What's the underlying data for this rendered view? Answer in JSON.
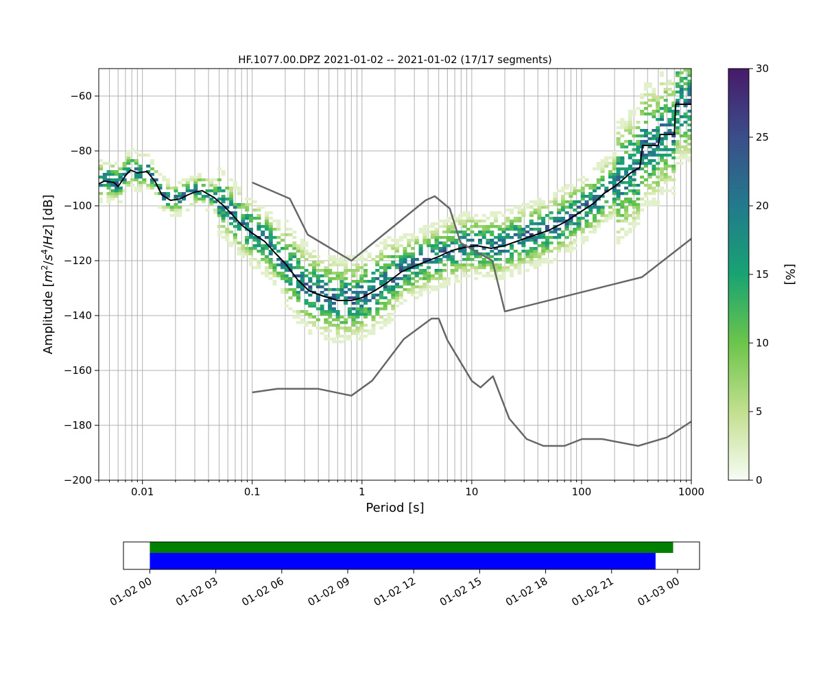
{
  "chart_data": [
    {
      "type": "heatmap",
      "title": "HF.1077.00.DPZ   2021-01-02 -- 2021-01-02  (17/17 segments)",
      "xlabel": "Period [s]",
      "ylabel": "Amplitude [m²/s⁴/Hz] [dB]",
      "x_scale": "log",
      "xlim": [
        0.004,
        1000
      ],
      "ylim": [
        -200,
        -50
      ],
      "x_ticks": [
        {
          "value": 0.01,
          "label": "0.01"
        },
        {
          "value": 0.1,
          "label": "0.1"
        },
        {
          "value": 1,
          "label": "1"
        },
        {
          "value": 10,
          "label": "10"
        },
        {
          "value": 100,
          "label": "100"
        },
        {
          "value": 1000,
          "label": "1000"
        }
      ],
      "y_ticks": [
        {
          "value": -60,
          "label": "−60"
        },
        {
          "value": -80,
          "label": "−80"
        },
        {
          "value": -100,
          "label": "−100"
        },
        {
          "value": -120,
          "label": "−120"
        },
        {
          "value": -140,
          "label": "−140"
        },
        {
          "value": -160,
          "label": "−160"
        },
        {
          "value": -180,
          "label": "−180"
        },
        {
          "value": -200,
          "label": "−200"
        }
      ],
      "grid": true,
      "colorbar": {
        "label": "[%]",
        "range": [
          0,
          30
        ],
        "ticks": [
          {
            "value": 0,
            "label": "0"
          },
          {
            "value": 5,
            "label": "5"
          },
          {
            "value": 10,
            "label": "10"
          },
          {
            "value": 15,
            "label": "15"
          },
          {
            "value": 20,
            "label": "20"
          },
          {
            "value": 25,
            "label": "25"
          },
          {
            "value": 30,
            "label": "30"
          }
        ],
        "colormap": [
          "#f7fcf5",
          "#c2df8f",
          "#6cc54a",
          "#18a373",
          "#227a8c",
          "#3b4e8a",
          "#471a6a"
        ]
      },
      "series": [
        {
          "role": "mean",
          "color": "#000000",
          "points": [
            [
              0.004,
              -92
            ],
            [
              0.0045,
              -91
            ],
            [
              0.0055,
              -91.5
            ],
            [
              0.006,
              -93
            ],
            [
              0.007,
              -89
            ],
            [
              0.0078,
              -87
            ],
            [
              0.009,
              -88
            ],
            [
              0.011,
              -87.5
            ],
            [
              0.013,
              -91
            ],
            [
              0.015,
              -96
            ],
            [
              0.018,
              -98
            ],
            [
              0.022,
              -97.5
            ],
            [
              0.026,
              -96
            ],
            [
              0.03,
              -95
            ],
            [
              0.035,
              -94.5
            ],
            [
              0.045,
              -97
            ],
            [
              0.055,
              -100
            ],
            [
              0.065,
              -103
            ],
            [
              0.08,
              -107
            ],
            [
              0.1,
              -110
            ],
            [
              0.13,
              -113
            ],
            [
              0.16,
              -117
            ],
            [
              0.2,
              -121
            ],
            [
              0.26,
              -127
            ],
            [
              0.33,
              -131
            ],
            [
              0.45,
              -133
            ],
            [
              0.6,
              -134.5
            ],
            [
              0.8,
              -134.5
            ],
            [
              1,
              -133.5
            ],
            [
              1.3,
              -131
            ],
            [
              1.7,
              -128
            ],
            [
              2.3,
              -124
            ],
            [
              3,
              -122
            ],
            [
              4,
              -120
            ],
            [
              5,
              -118.5
            ],
            [
              6,
              -117
            ],
            [
              7,
              -116
            ],
            [
              9,
              -115
            ],
            [
              11,
              -114.5
            ],
            [
              15,
              -115.5
            ],
            [
              20,
              -114.5
            ],
            [
              30,
              -112
            ],
            [
              50,
              -109
            ],
            [
              70,
              -106
            ],
            [
              100,
              -102
            ],
            [
              130,
              -99
            ],
            [
              160,
              -95.5
            ],
            [
              200,
              -93
            ],
            [
              230,
              -91
            ],
            [
              280,
              -88
            ],
            [
              340,
              -86
            ],
            [
              360,
              -78
            ],
            [
              500,
              -78
            ],
            [
              520,
              -74
            ],
            [
              700,
              -74
            ],
            [
              720,
              -63
            ],
            [
              1000,
              -63
            ]
          ]
        },
        {
          "role": "nlnm-model",
          "color": "#666666",
          "points": [
            [
              0.1,
              -168
            ],
            [
              0.17,
              -166.7
            ],
            [
              0.4,
              -166.7
            ],
            [
              0.8,
              -169.2
            ],
            [
              1.24,
              -163.7
            ],
            [
              2.4,
              -148.6
            ],
            [
              4.3,
              -141.1
            ],
            [
              5,
              -141.1
            ],
            [
              6,
              -149
            ],
            [
              10,
              -163.8
            ],
            [
              12,
              -166.2
            ],
            [
              15.6,
              -162.1
            ],
            [
              21.9,
              -177.5
            ],
            [
              31.6,
              -185
            ],
            [
              45,
              -187.5
            ],
            [
              70,
              -187.5
            ],
            [
              101,
              -185
            ],
            [
              154,
              -185
            ],
            [
              328,
              -187.5
            ],
            [
              600,
              -184.4
            ],
            [
              1000,
              -178.6
            ]
          ]
        },
        {
          "role": "nhnm-model",
          "color": "#666666",
          "points": [
            [
              0.1,
              -91.5
            ],
            [
              0.22,
              -97.4
            ],
            [
              0.32,
              -110.5
            ],
            [
              0.8,
              -120
            ],
            [
              3.8,
              -98
            ],
            [
              4.6,
              -96.5
            ],
            [
              6.3,
              -101
            ],
            [
              7.9,
              -113.5
            ],
            [
              15.4,
              -120
            ],
            [
              20,
              -138.5
            ],
            [
              354.8,
              -126
            ],
            [
              1000,
              -112
            ]
          ]
        }
      ],
      "probability_bands": [
        {
          "period_range": [
            0.004,
            0.006
          ],
          "db_range": [
            -97,
            -83
          ],
          "level": "high"
        },
        {
          "period_range": [
            0.006,
            0.012
          ],
          "db_range": [
            -93,
            -80
          ],
          "level": "medium"
        },
        {
          "period_range": [
            0.012,
            0.05
          ],
          "db_range": [
            -102,
            -91
          ],
          "level": "mixed"
        },
        {
          "period_range": [
            0.05,
            0.2
          ],
          "db_range": [
            -122,
            -99
          ],
          "level": "high"
        },
        {
          "period_range": [
            0.2,
            2
          ],
          "db_range": [
            -142,
            -112
          ],
          "level": "mixed"
        },
        {
          "period_range": [
            2,
            20
          ],
          "db_range": [
            -126,
            -103
          ],
          "level": "mixed"
        },
        {
          "period_range": [
            20,
            200
          ],
          "db_range": [
            -113,
            -90
          ],
          "level": "high"
        },
        {
          "period_range": [
            200,
            1000
          ],
          "db_range": [
            -93,
            -50
          ],
          "level": "mixed"
        }
      ]
    },
    {
      "type": "timeline",
      "x_ticks": [
        "01-02 00",
        "01-02 03",
        "01-02 06",
        "01-02 09",
        "01-02 12",
        "01-02 15",
        "01-02 18",
        "01-02 21",
        "01-03 00"
      ],
      "x_range_hours": [
        -1.2,
        25
      ],
      "bars": [
        {
          "role": "data-coverage",
          "color": "#008000",
          "start_hour": 0,
          "end_hour": 23.8
        },
        {
          "role": "processed-segments",
          "color": "#0000ff",
          "start_hour": 0,
          "end_hour": 23
        }
      ]
    }
  ]
}
